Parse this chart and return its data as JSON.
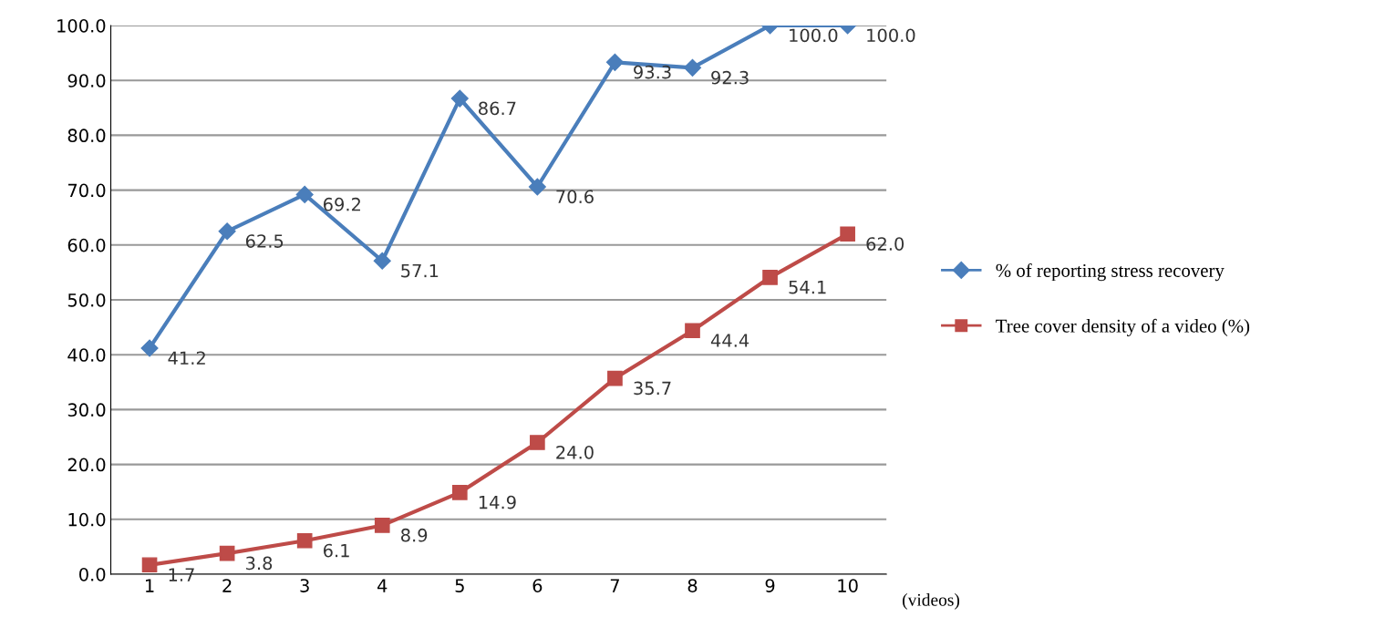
{
  "chart_data": {
    "type": "line",
    "xlabel": "(videos)",
    "categories": [
      "1",
      "2",
      "3",
      "4",
      "5",
      "6",
      "7",
      "8",
      "9",
      "10"
    ],
    "series": [
      {
        "name": "% of reporting stress recovery",
        "color": "#4a7ebb",
        "marker": "diamond",
        "values": [
          41.2,
          62.5,
          69.2,
          57.1,
          86.7,
          70.6,
          93.3,
          92.3,
          100.0,
          100.0
        ],
        "value_labels": [
          "41.2",
          "62.5",
          "69.2",
          "57.1",
          "86.7",
          "70.6",
          "93.3",
          "92.3",
          "100.0",
          "100.0"
        ]
      },
      {
        "name": "Tree cover density of a video (%)",
        "color": "#be4b48",
        "marker": "square",
        "values": [
          1.7,
          3.8,
          6.1,
          8.9,
          14.9,
          24.0,
          35.7,
          44.4,
          54.1,
          62.0
        ],
        "value_labels": [
          "1.7",
          "3.8",
          "6.1",
          "8.9",
          "14.9",
          "24.0",
          "35.7",
          "44.4",
          "54.1",
          "62.0"
        ]
      }
    ],
    "ylim": [
      0,
      100
    ],
    "yticks": [
      {
        "value": 0,
        "label": "0.0"
      },
      {
        "value": 10,
        "label": "10.0"
      },
      {
        "value": 20,
        "label": "20.0"
      },
      {
        "value": 30,
        "label": "30.0"
      },
      {
        "value": 40,
        "label": "40.0"
      },
      {
        "value": 50,
        "label": "50.0"
      },
      {
        "value": 60,
        "label": "60.0"
      },
      {
        "value": 70,
        "label": "70.0"
      },
      {
        "value": 80,
        "label": "80.0"
      },
      {
        "value": 90,
        "label": "90.0"
      },
      {
        "value": 100,
        "label": "100.0"
      }
    ],
    "grid": "y",
    "legend": "right",
    "line_style": "solid"
  }
}
